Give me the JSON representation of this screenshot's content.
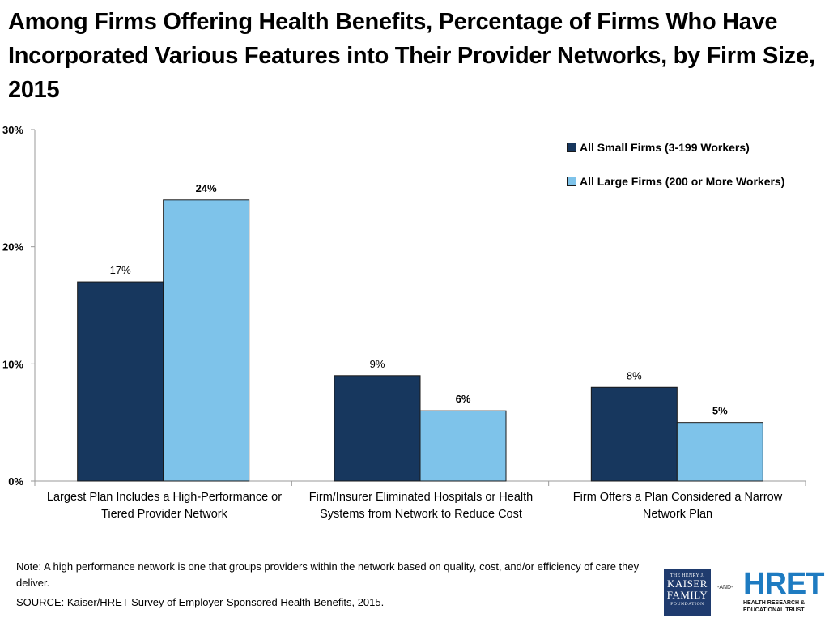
{
  "title": "Among Firms Offering Health Benefits, Percentage of Firms Who Have Incorporated Various Features into Their Provider Networks, by Firm Size, 2015",
  "colors": {
    "small": "#17375e",
    "large": "#7ec3ea",
    "stroke": "#1a1a1a",
    "axis": "#9a9a9a"
  },
  "chart_data": {
    "type": "bar",
    "categories": [
      "Largest Plan Includes a High-Performance or Tiered Provider Network",
      "Firm/Insurer Eliminated Hospitals or Health Systems from Network to Reduce Cost",
      "Firm Offers a Plan Considered a Narrow Network Plan"
    ],
    "category_lines": [
      [
        "Largest Plan Includes a High-Performance or",
        "Tiered Provider Network"
      ],
      [
        "Firm/Insurer Eliminated Hospitals or Health",
        "Systems from Network to Reduce Cost"
      ],
      [
        "Firm Offers a Plan Considered a Narrow",
        "Network Plan"
      ]
    ],
    "series": [
      {
        "name": "All Small Firms (3-199 Workers)",
        "values": [
          17,
          9,
          8
        ],
        "labels": [
          "17%",
          "9%",
          "8%"
        ],
        "label_bold": false
      },
      {
        "name": "All Large Firms (200 or More Workers)",
        "values": [
          24,
          6,
          5
        ],
        "labels": [
          "24%",
          "6%",
          "5%"
        ],
        "label_bold": true
      }
    ],
    "ylim": [
      0,
      30
    ],
    "yticks": [
      0,
      10,
      20,
      30
    ],
    "ytick_labels": [
      "0%",
      "10%",
      "20%",
      "30%"
    ],
    "legend_position": "top-right",
    "grid": false
  },
  "note": "Note: A high performance network is one that groups providers within the network based on quality, cost, and/or efficiency of care they deliver.",
  "source": "SOURCE: Kaiser/HRET Survey of Employer-Sponsored Health Benefits, 2015.",
  "logos": {
    "kff_top": "THE HENRY J.",
    "kff_name1": "KAISER",
    "kff_name2": "FAMILY",
    "kff_bottom": "FOUNDATION",
    "and": "-AND-",
    "hret_name": "HRET",
    "hret_sub1": "HEALTH RESEARCH &",
    "hret_sub2": "EDUCATIONAL TRUST"
  }
}
